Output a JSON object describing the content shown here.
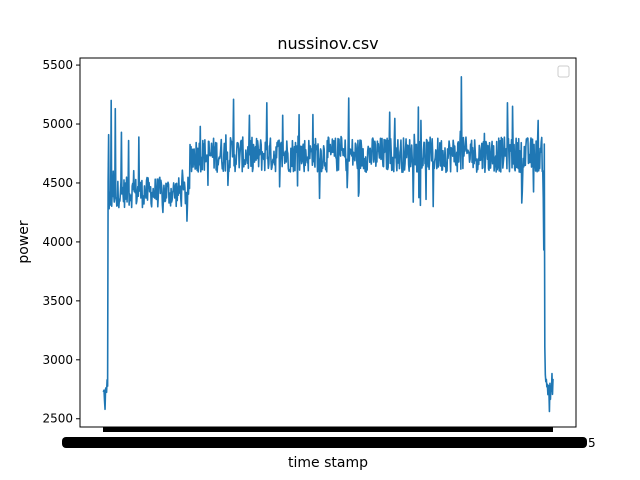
{
  "chart_data": {
    "type": "line",
    "title": "nussinov.csv",
    "xlabel": "time stamp",
    "ylabel": "power",
    "ylim": [
      2430,
      5560
    ],
    "y_ticks": [
      2500,
      3000,
      3500,
      4000,
      4500,
      5000,
      5500
    ],
    "y_tick_labels": [
      "2500",
      "3000",
      "3500",
      "4000",
      "4500",
      "5000",
      "5500"
    ],
    "x_tick_labels_overlapping": true,
    "x_tick_label_tail": "5",
    "grid": false,
    "legend": {
      "placement": "top-right",
      "entries": []
    },
    "series_color": "#1f77b4",
    "n_points": 900,
    "profile": [
      {
        "from": 0,
        "to": 10,
        "base": 2710,
        "noise": 90
      },
      {
        "from": 10,
        "to": 12,
        "base": 4700,
        "noise": 250
      },
      {
        "from": 12,
        "to": 30,
        "base": 4330,
        "noise": 110
      },
      {
        "from": 30,
        "to": 170,
        "base": 4420,
        "noise": 130
      },
      {
        "from": 170,
        "to": 860,
        "base": 4740,
        "noise": 150
      },
      {
        "from": 860,
        "to": 864,
        "base": 4200,
        "noise": 400
      },
      {
        "from": 864,
        "to": 880,
        "base": 2780,
        "noise": 120
      }
    ],
    "spikes": [
      {
        "i": 11,
        "y": 4910
      },
      {
        "i": 16,
        "y": 5200
      },
      {
        "i": 20,
        "y": 4600
      },
      {
        "i": 24,
        "y": 5130
      },
      {
        "i": 36,
        "y": 4930
      },
      {
        "i": 50,
        "y": 4860
      },
      {
        "i": 70,
        "y": 4890
      },
      {
        "i": 190,
        "y": 4980
      },
      {
        "i": 255,
        "y": 5210
      },
      {
        "i": 320,
        "y": 5180
      },
      {
        "i": 410,
        "y": 5080
      },
      {
        "i": 480,
        "y": 5220
      },
      {
        "i": 560,
        "y": 5100
      },
      {
        "i": 620,
        "y": 4310
      },
      {
        "i": 645,
        "y": 4300
      },
      {
        "i": 700,
        "y": 5400
      },
      {
        "i": 745,
        "y": 4920
      },
      {
        "i": 790,
        "y": 5180
      },
      {
        "i": 800,
        "y": 5150
      },
      {
        "i": 818,
        "y": 4330
      },
      {
        "i": 850,
        "y": 5030
      },
      {
        "i": 862,
        "y": 4830
      },
      {
        "i": 863,
        "y": 3110
      },
      {
        "i": 4,
        "y": 2580
      },
      {
        "i": 8,
        "y": 2830
      }
    ]
  }
}
